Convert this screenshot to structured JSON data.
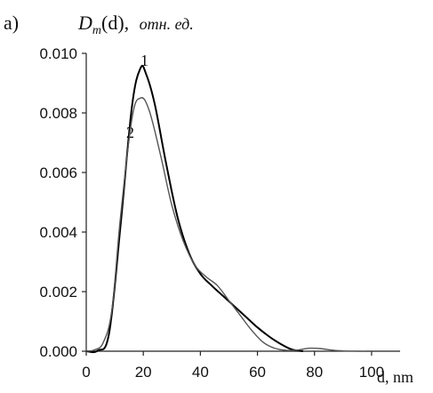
{
  "panel_label": "a)",
  "chart_data": {
    "type": "line",
    "title": "",
    "ylabel": "D_m(d), отн. ед.",
    "ylabel_parts": {
      "var": "D",
      "sub": "m",
      "arg": "(d),",
      "unit": "отн. ед."
    },
    "xlabel": "d, nm",
    "xlim": [
      0,
      110
    ],
    "ylim": [
      0,
      0.01
    ],
    "xticks": [
      "0",
      "20",
      "40",
      "60",
      "80",
      "100"
    ],
    "yticks": [
      "0.000",
      "0.002",
      "0.004",
      "0.006",
      "0.008",
      "0.010"
    ],
    "grid": false,
    "legend": "none",
    "series": [
      {
        "label": "1",
        "color": "#000000",
        "x": [
          0,
          4,
          8,
          12,
          16,
          19,
          21,
          24,
          28,
          32,
          36,
          40,
          44,
          48,
          52,
          56,
          60,
          64,
          68,
          72,
          76
        ],
        "y": [
          0.0,
          2e-05,
          0.0006,
          0.0042,
          0.0082,
          0.0095,
          0.0093,
          0.0083,
          0.0063,
          0.0045,
          0.0033,
          0.0026,
          0.0022,
          0.00185,
          0.0015,
          0.00115,
          0.0008,
          0.0005,
          0.00025,
          6e-05,
          0.0
        ]
      },
      {
        "label": "2",
        "color": "#555555",
        "x": [
          0,
          3,
          6,
          9,
          12,
          16,
          19,
          22,
          26,
          30,
          34,
          38,
          42,
          46,
          50,
          54,
          58,
          62,
          66,
          70,
          74,
          78,
          82,
          86,
          90,
          95,
          100
        ],
        "y": [
          0.0,
          5e-05,
          0.0003,
          0.0014,
          0.0045,
          0.0078,
          0.0085,
          0.0081,
          0.0066,
          0.0049,
          0.0037,
          0.0029,
          0.0025,
          0.0022,
          0.0017,
          0.0012,
          0.0007,
          0.0003,
          0.0001,
          3e-05,
          4e-05,
          0.0001,
          9e-05,
          4e-05,
          1e-05,
          0.0,
          0.0
        ]
      }
    ]
  }
}
